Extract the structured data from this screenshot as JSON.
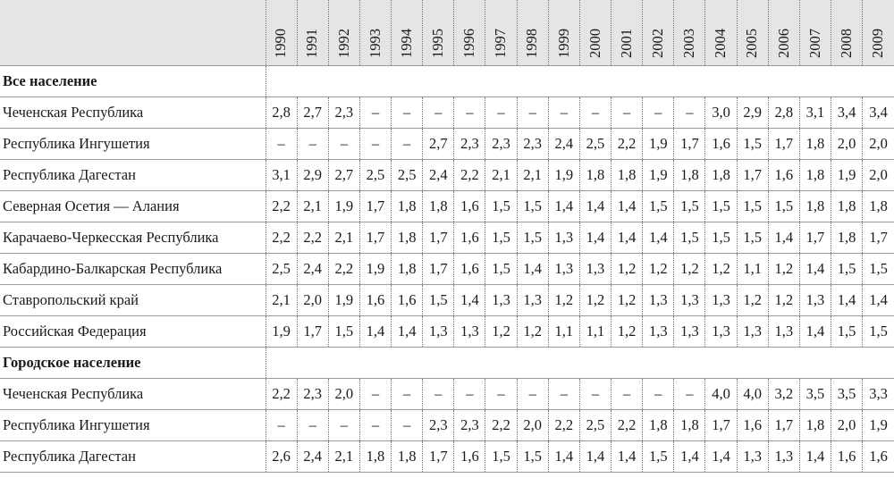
{
  "table": {
    "years": [
      "1990",
      "1991",
      "1992",
      "1993",
      "1994",
      "1995",
      "1996",
      "1997",
      "1998",
      "1999",
      "2000",
      "2001",
      "2002",
      "2003",
      "2004",
      "2005",
      "2006",
      "2007",
      "2008",
      "2009"
    ],
    "sections": [
      {
        "title": "Все население",
        "rows": [
          {
            "label": "Чеченская Республика",
            "values": [
              "2,8",
              "2,7",
              "2,3",
              "–",
              "–",
              "–",
              "–",
              "–",
              "–",
              "–",
              "–",
              "–",
              "–",
              "–",
              "3,0",
              "2,9",
              "2,8",
              "3,1",
              "3,4",
              "3,4"
            ]
          },
          {
            "label": "Республика Ингушетия",
            "values": [
              "–",
              "–",
              "–",
              "–",
              "–",
              "2,7",
              "2,3",
              "2,3",
              "2,3",
              "2,4",
              "2,5",
              "2,2",
              "1,9",
              "1,7",
              "1,6",
              "1,5",
              "1,7",
              "1,8",
              "2,0",
              "2,0"
            ]
          },
          {
            "label": "Республика Дагестан",
            "values": [
              "3,1",
              "2,9",
              "2,7",
              "2,5",
              "2,5",
              "2,4",
              "2,2",
              "2,1",
              "2,1",
              "1,9",
              "1,8",
              "1,8",
              "1,9",
              "1,8",
              "1,8",
              "1,7",
              "1,6",
              "1,8",
              "1,9",
              "2,0"
            ]
          },
          {
            "label": "Северная Осетия — Алания",
            "values": [
              "2,2",
              "2,1",
              "1,9",
              "1,7",
              "1,8",
              "1,8",
              "1,6",
              "1,5",
              "1,5",
              "1,4",
              "1,4",
              "1,4",
              "1,5",
              "1,5",
              "1,5",
              "1,5",
              "1,5",
              "1,8",
              "1,8",
              "1,8"
            ]
          },
          {
            "label": "Карачаево-Черкесская Республика",
            "values": [
              "2,2",
              "2,2",
              "2,1",
              "1,7",
              "1,8",
              "1,7",
              "1,6",
              "1,5",
              "1,5",
              "1,3",
              "1,4",
              "1,4",
              "1,4",
              "1,5",
              "1,5",
              "1,5",
              "1,4",
              "1,7",
              "1,8",
              "1,7"
            ]
          },
          {
            "label": "Кабардино-Балкарская Республика",
            "values": [
              "2,5",
              "2,4",
              "2,2",
              "1,9",
              "1,8",
              "1,7",
              "1,6",
              "1,5",
              "1,4",
              "1,3",
              "1,3",
              "1,2",
              "1,2",
              "1,2",
              "1,2",
              "1,1",
              "1,2",
              "1,4",
              "1,5",
              "1,5"
            ]
          },
          {
            "label": "Ставропольский край",
            "values": [
              "2,1",
              "2,0",
              "1,9",
              "1,6",
              "1,6",
              "1,5",
              "1,4",
              "1,3",
              "1,3",
              "1,2",
              "1,2",
              "1,2",
              "1,3",
              "1,3",
              "1,3",
              "1,2",
              "1,2",
              "1,3",
              "1,4",
              "1,4"
            ]
          },
          {
            "label": "Российская Федерация",
            "values": [
              "1,9",
              "1,7",
              "1,5",
              "1,4",
              "1,4",
              "1,3",
              "1,3",
              "1,2",
              "1,2",
              "1,1",
              "1,1",
              "1,2",
              "1,3",
              "1,3",
              "1,3",
              "1,3",
              "1,3",
              "1,4",
              "1,5",
              "1,5"
            ]
          }
        ]
      },
      {
        "title": "Городское население",
        "rows": [
          {
            "label": "Чеченская Республика",
            "values": [
              "2,2",
              "2,3",
              "2,0",
              "–",
              "–",
              "–",
              "–",
              "–",
              "–",
              "–",
              "–",
              "–",
              "–",
              "–",
              "4,0",
              "4,0",
              "3,2",
              "3,5",
              "3,5",
              "3,3"
            ]
          },
          {
            "label": "Республика Ингушетия",
            "values": [
              "–",
              "–",
              "–",
              "–",
              "–",
              "2,3",
              "2,3",
              "2,2",
              "2,0",
              "2,2",
              "2,5",
              "2,2",
              "1,8",
              "1,8",
              "1,7",
              "1,6",
              "1,7",
              "1,8",
              "2,0",
              "1,9"
            ]
          },
          {
            "label": "Республика Дагестан",
            "values": [
              "2,6",
              "2,4",
              "2,1",
              "1,8",
              "1,8",
              "1,7",
              "1,6",
              "1,5",
              "1,5",
              "1,4",
              "1,4",
              "1,4",
              "1,5",
              "1,4",
              "1,4",
              "1,3",
              "1,3",
              "1,4",
              "1,6",
              "1,6"
            ]
          }
        ]
      }
    ]
  }
}
